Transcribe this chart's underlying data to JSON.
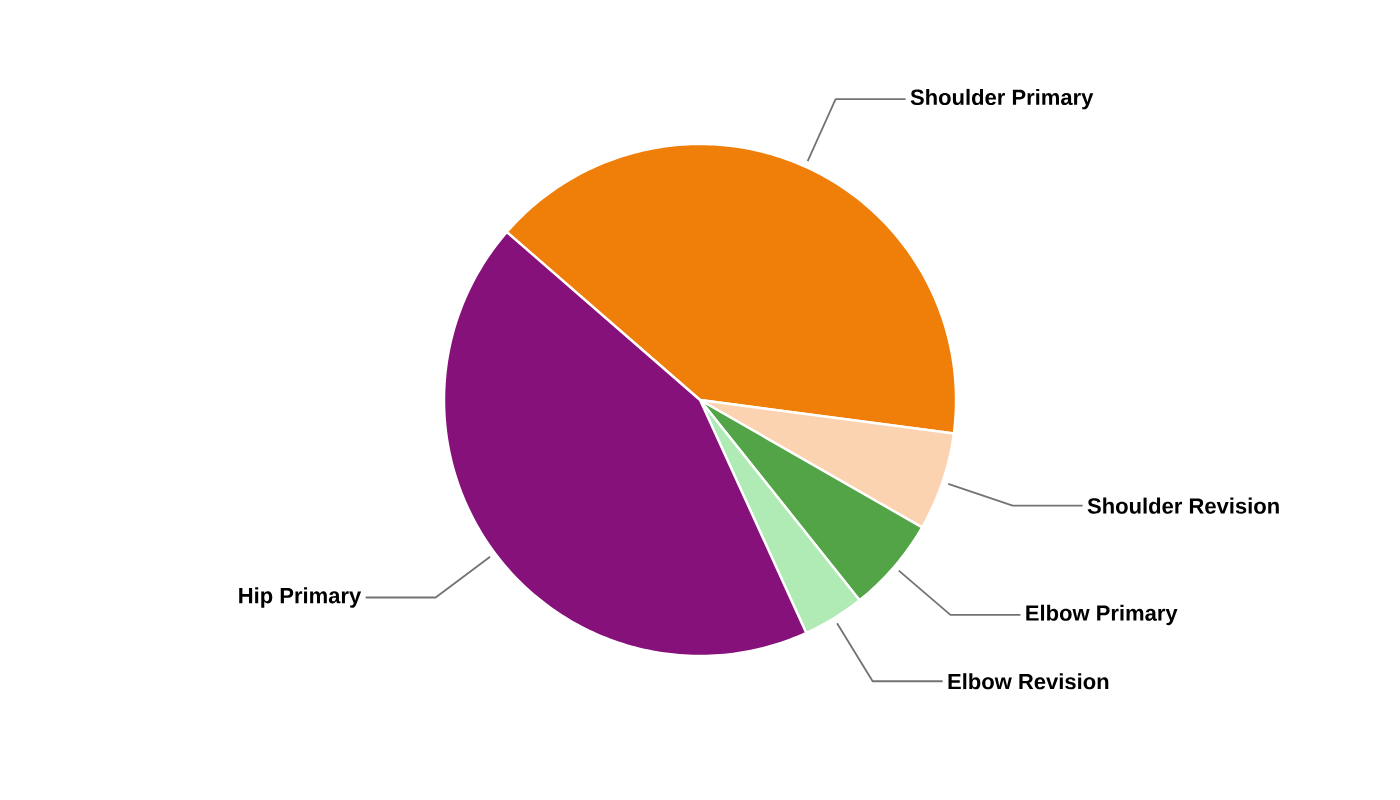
{
  "chart_data": {
    "type": "pie",
    "categories": [
      "Shoulder Primary",
      "Shoulder Revision",
      "Elbow Primary",
      "Elbow Revision",
      "Hip Primary"
    ],
    "values": [
      40.7,
      6.2,
      6.0,
      3.9,
      43.2
    ],
    "colors": [
      "#f07f09",
      "#fcd3b0",
      "#52a447",
      "#b0ebb5",
      "#86117a"
    ]
  }
}
